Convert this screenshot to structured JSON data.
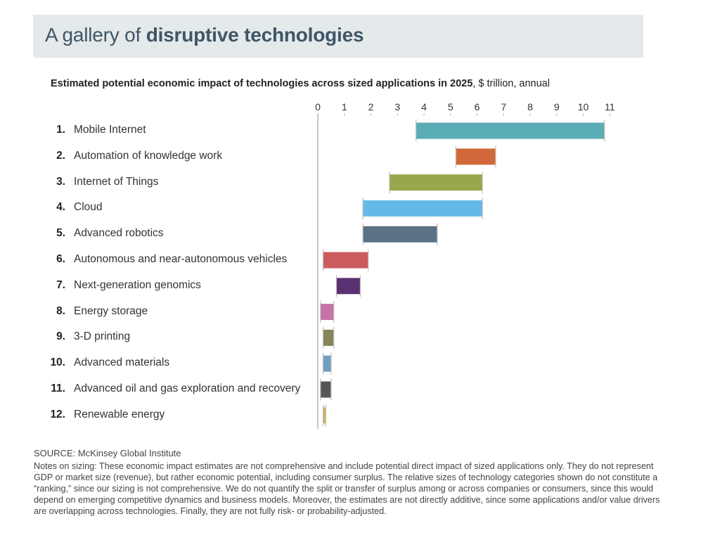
{
  "title": {
    "prefix": "A gallery of ",
    "bold": "disruptive technologies"
  },
  "subtitle": {
    "bold": "Estimated potential economic impact of technologies across sized applications in 2025",
    "rest": ", $ trillion, annual"
  },
  "chart_data": {
    "type": "bar",
    "orientation": "horizontal-range",
    "title": "Estimated potential economic impact of technologies across sized applications in 2025",
    "xlabel": "$ trillion, annual",
    "xlim": [
      0,
      11
    ],
    "xticks": [
      "0",
      "1",
      "2",
      "3",
      "4",
      "5",
      "6",
      "7",
      "8",
      "9",
      "10",
      "11"
    ],
    "grid": false,
    "categories": [
      {
        "rank": "1.",
        "label": "Mobile Internet",
        "low": 3.7,
        "high": 10.8,
        "color": "#5aacb6"
      },
      {
        "rank": "2.",
        "label": "Automation of knowledge work",
        "low": 5.2,
        "high": 6.7,
        "color": "#d2693a"
      },
      {
        "rank": "3.",
        "label": "Internet of Things",
        "low": 2.7,
        "high": 6.2,
        "color": "#9aa64b"
      },
      {
        "rank": "4.",
        "label": "Cloud",
        "low": 1.7,
        "high": 6.2,
        "color": "#63b9e7"
      },
      {
        "rank": "5.",
        "label": "Advanced robotics",
        "low": 1.7,
        "high": 4.5,
        "color": "#5b7185"
      },
      {
        "rank": "6.",
        "label": "Autonomous and near-autonomous vehicles",
        "low": 0.2,
        "high": 1.9,
        "color": "#cc5b5e"
      },
      {
        "rank": "7.",
        "label": "Next-generation genomics",
        "low": 0.7,
        "high": 1.6,
        "color": "#5a3271"
      },
      {
        "rank": "8.",
        "label": "Energy storage",
        "low": 0.1,
        "high": 0.6,
        "color": "#c673a6"
      },
      {
        "rank": "9.",
        "label": "3-D printing",
        "low": 0.2,
        "high": 0.6,
        "color": "#86855a"
      },
      {
        "rank": "10.",
        "label": "Advanced materials",
        "low": 0.2,
        "high": 0.5,
        "color": "#6f9fc1"
      },
      {
        "rank": "11.",
        "label": "Advanced oil and gas exploration and recovery",
        "low": 0.1,
        "high": 0.5,
        "color": "#555555"
      },
      {
        "rank": "12.",
        "label": "Renewable energy",
        "low": 0.2,
        "high": 0.3,
        "color": "#d2b14c"
      }
    ]
  },
  "source": "SOURCE: McKinsey Global Institute",
  "notes": "Notes on sizing: These economic impact estimates are not comprehensive and include potential direct impact of sized applications only. They do not represent GDP or market size (revenue), but rather economic potential, including consumer surplus. The relative sizes of technology categories shown do not constitute a “ranking,” since our sizing is not comprehensive. We do not quantify the split or transfer of surplus among or across companies or consumers, since this would depend on emerging competitive dynamics and business models. Moreover, the estimates are not directly additive, since some applications and/or value drivers are overlapping across technologies. Finally, they are not fully risk- or probability-adjusted."
}
